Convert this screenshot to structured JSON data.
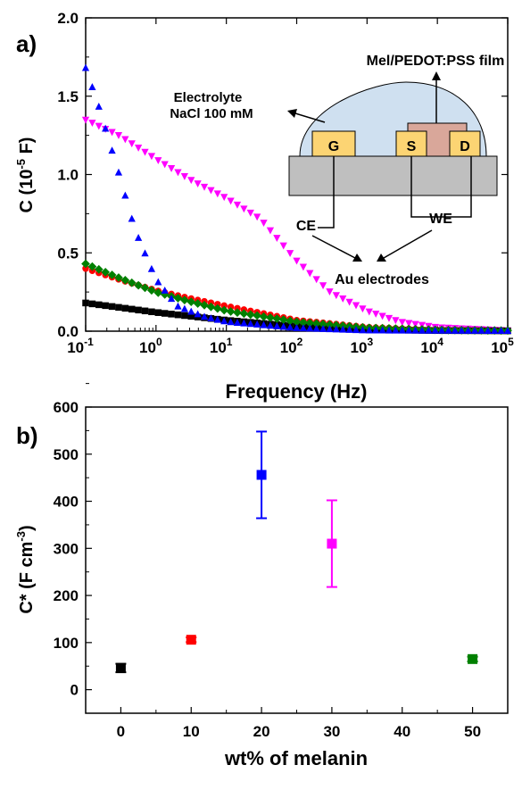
{
  "panels": {
    "a": {
      "label": "a)"
    },
    "b": {
      "label": "b)"
    }
  },
  "inset": {
    "electrolyte_line1": "Electrolyte",
    "electrolyte_line2": "NaCl 100 mM",
    "film_label": "Mel/PEDOT:PSS film",
    "gate": "G",
    "source": "S",
    "drain": "D",
    "ce": "CE",
    "we": "WE",
    "electrodes": "Au electrodes"
  },
  "colors": {
    "black": "#000000",
    "red": "#ff0000",
    "blue": "#0000ff",
    "magenta": "#ff00ff",
    "green": "#008000",
    "electrolyte_fill": "#cfe0f0",
    "pad_fill": "#fcd473",
    "film_fill": "#d9a79a",
    "substrate_fill": "#bfbfbf"
  },
  "chart_data": [
    {
      "type": "scatter",
      "panel": "a",
      "xlabel": "Frequency (Hz)",
      "ylabel_main": "C (10",
      "ylabel_sup": "-5",
      "ylabel_tail": " F)",
      "xscale": "log",
      "xlim": [
        0.1,
        100000
      ],
      "ylim": [
        0,
        2.0
      ],
      "yticks": [
        "0.0",
        "0.5",
        "1.0",
        "1.5",
        "2.0"
      ],
      "xtick_exponents": [
        "-1",
        "0",
        "1",
        "2",
        "3",
        "4",
        "5"
      ],
      "xtick_base": "10",
      "series": [
        {
          "color": "black",
          "marker": "square",
          "x": [
            0.1,
            1,
            10,
            100,
            1000,
            10000,
            100000
          ],
          "y": [
            0.18,
            0.12,
            0.07,
            0.03,
            0.01,
            0.004,
            0.002
          ]
        },
        {
          "color": "red",
          "marker": "circle",
          "x": [
            0.1,
            0.3,
            1,
            3,
            10,
            100,
            1000,
            10000,
            100000
          ],
          "y": [
            0.4,
            0.33,
            0.26,
            0.21,
            0.16,
            0.07,
            0.025,
            0.008,
            0.003
          ]
        },
        {
          "color": "green",
          "marker": "diamond",
          "x": [
            0.1,
            0.3,
            1,
            3,
            10,
            100,
            1000,
            10000,
            100000
          ],
          "y": [
            0.43,
            0.34,
            0.25,
            0.19,
            0.13,
            0.06,
            0.022,
            0.008,
            0.004
          ]
        },
        {
          "color": "blue",
          "marker": "triangle-up",
          "x": [
            0.1,
            0.15,
            0.3,
            0.5,
            1,
            2,
            5,
            10,
            100,
            1000,
            100000
          ],
          "y": [
            1.68,
            1.45,
            1.0,
            0.65,
            0.33,
            0.16,
            0.09,
            0.06,
            0.02,
            0.005,
            0.002
          ]
        },
        {
          "color": "magenta",
          "marker": "triangle-down",
          "x": [
            0.1,
            0.3,
            1,
            3,
            10,
            30,
            100,
            300,
            1000,
            3000,
            10000,
            100000
          ],
          "y": [
            1.35,
            1.25,
            1.1,
            0.97,
            0.85,
            0.72,
            0.45,
            0.25,
            0.13,
            0.06,
            0.025,
            0.005
          ]
        }
      ]
    },
    {
      "type": "scatter",
      "panel": "b",
      "xlabel": "wt% of melanin",
      "ylabel_main": "C* (F cm",
      "ylabel_sup": "-3",
      "ylabel_tail": ")",
      "xlim": [
        -5,
        55
      ],
      "ylim": [
        -50,
        600
      ],
      "xticks": [
        "0",
        "10",
        "20",
        "30",
        "40",
        "50"
      ],
      "yticks": [
        "0",
        "100",
        "200",
        "300",
        "400",
        "500",
        "600"
      ],
      "points": [
        {
          "x": 0,
          "y": 46,
          "err": 9,
          "color": "black"
        },
        {
          "x": 10,
          "y": 106,
          "err": 5,
          "color": "red"
        },
        {
          "x": 20,
          "y": 456,
          "err": 92,
          "color": "blue"
        },
        {
          "x": 30,
          "y": 310,
          "err": 92,
          "color": "magenta"
        },
        {
          "x": 50,
          "y": 65,
          "err": 5,
          "color": "green"
        }
      ]
    }
  ]
}
